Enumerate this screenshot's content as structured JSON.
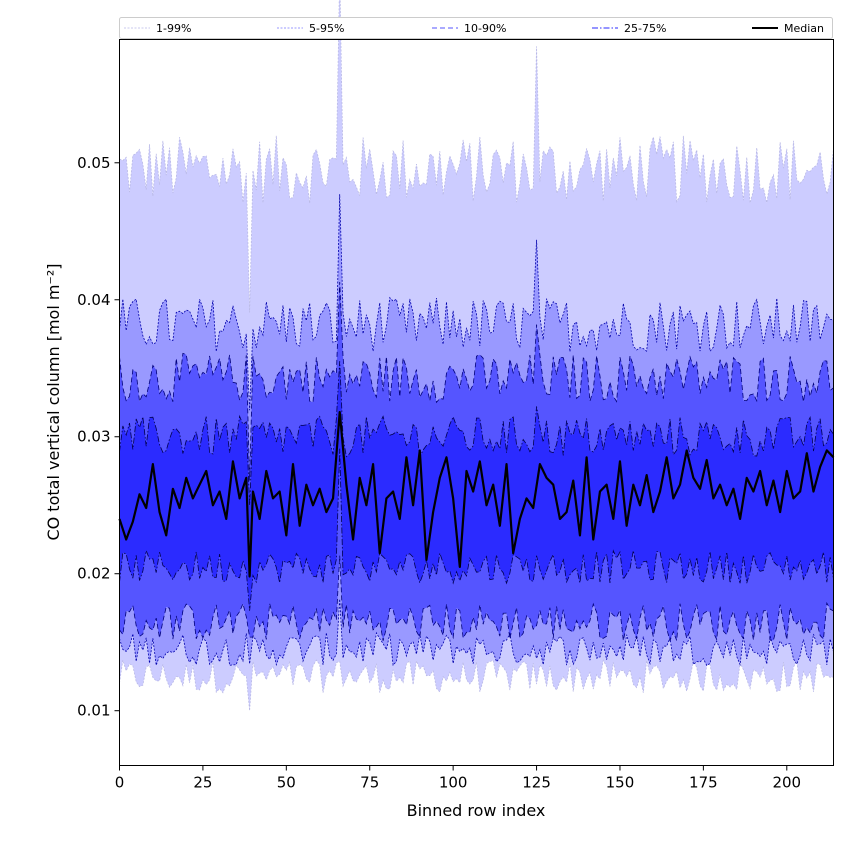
{
  "chart_data": {
    "type": "area",
    "xlabel": "Binned row index",
    "ylabel": "CO total vertical column [mol m⁻²]",
    "xlim": [
      0,
      214
    ],
    "ylim": [
      0.006,
      0.059
    ],
    "xticks": [
      0,
      25,
      50,
      75,
      100,
      125,
      150,
      175,
      200
    ],
    "yticks": [
      0.01,
      0.02,
      0.03,
      0.04,
      0.05
    ],
    "ytick_labels": [
      "0.01",
      "0.02",
      "0.03",
      "0.04",
      "0.05"
    ],
    "grid": false,
    "legend_position": "top",
    "bands": [
      {
        "name": "1-99%",
        "color": "#ccccff",
        "line_color": "#b9b9e6",
        "line_style": "dotted",
        "lower_mean": 0.0125,
        "upper_mean": 0.0495,
        "amp_lower": 0.0012,
        "amp_upper": 0.0025
      },
      {
        "name": "5-95%",
        "color": "#9999ff",
        "line_color": "#0000aa",
        "line_style": "dotted",
        "lower_mean": 0.0145,
        "upper_mean": 0.0382,
        "amp_lower": 0.0012,
        "amp_upper": 0.002
      },
      {
        "name": "10-90%",
        "color": "#5555ff",
        "line_color": "#00007a",
        "line_style": "dashed",
        "lower_mean": 0.0165,
        "upper_mean": 0.0343,
        "amp_lower": 0.0014,
        "amp_upper": 0.0018
      },
      {
        "name": "25-75%",
        "color": "#2b2bff",
        "line_color": "#000050",
        "line_style": "dashdot",
        "lower_mean": 0.0205,
        "upper_mean": 0.03,
        "amp_lower": 0.0012,
        "amp_upper": 0.0015
      }
    ],
    "median": {
      "name": "Median",
      "color": "#000000",
      "x": [
        0,
        2,
        4,
        6,
        8,
        10,
        12,
        14,
        16,
        18,
        20,
        22,
        24,
        26,
        28,
        30,
        32,
        34,
        36,
        38,
        39,
        40,
        42,
        44,
        46,
        48,
        50,
        52,
        54,
        56,
        58,
        60,
        62,
        64,
        66,
        68,
        70,
        72,
        74,
        76,
        78,
        80,
        82,
        84,
        86,
        88,
        90,
        92,
        94,
        96,
        98,
        100,
        102,
        104,
        106,
        108,
        110,
        112,
        114,
        116,
        118,
        120,
        122,
        124,
        126,
        128,
        130,
        132,
        134,
        136,
        138,
        140,
        142,
        144,
        146,
        148,
        150,
        152,
        154,
        156,
        158,
        160,
        162,
        164,
        166,
        168,
        170,
        172,
        174,
        176,
        178,
        180,
        182,
        184,
        186,
        188,
        190,
        192,
        194,
        196,
        198,
        200,
        202,
        204,
        206,
        208,
        210,
        212,
        214
      ],
      "values": [
        0.024,
        0.0225,
        0.0238,
        0.0258,
        0.0248,
        0.028,
        0.0245,
        0.0228,
        0.0262,
        0.0248,
        0.027,
        0.0255,
        0.0265,
        0.0275,
        0.025,
        0.026,
        0.024,
        0.0282,
        0.0255,
        0.027,
        0.0198,
        0.026,
        0.024,
        0.0275,
        0.0255,
        0.026,
        0.0228,
        0.028,
        0.0235,
        0.0265,
        0.025,
        0.0262,
        0.0245,
        0.0255,
        0.0318,
        0.0265,
        0.0225,
        0.027,
        0.025,
        0.028,
        0.0215,
        0.0255,
        0.026,
        0.024,
        0.0285,
        0.025,
        0.029,
        0.021,
        0.0245,
        0.027,
        0.0285,
        0.0255,
        0.0205,
        0.0275,
        0.026,
        0.0282,
        0.025,
        0.0265,
        0.0235,
        0.028,
        0.0215,
        0.024,
        0.0255,
        0.0248,
        0.028,
        0.027,
        0.0265,
        0.024,
        0.0245,
        0.0268,
        0.0228,
        0.0285,
        0.0225,
        0.026,
        0.0265,
        0.024,
        0.0282,
        0.0235,
        0.0265,
        0.025,
        0.0272,
        0.0245,
        0.026,
        0.0285,
        0.0255,
        0.0265,
        0.029,
        0.027,
        0.0262,
        0.0283,
        0.0255,
        0.0265,
        0.025,
        0.0262,
        0.024,
        0.027,
        0.026,
        0.0275,
        0.025,
        0.0268,
        0.0245,
        0.0275,
        0.0255,
        0.026,
        0.0288,
        0.026,
        0.0278,
        0.029,
        0.0285
      ]
    }
  }
}
